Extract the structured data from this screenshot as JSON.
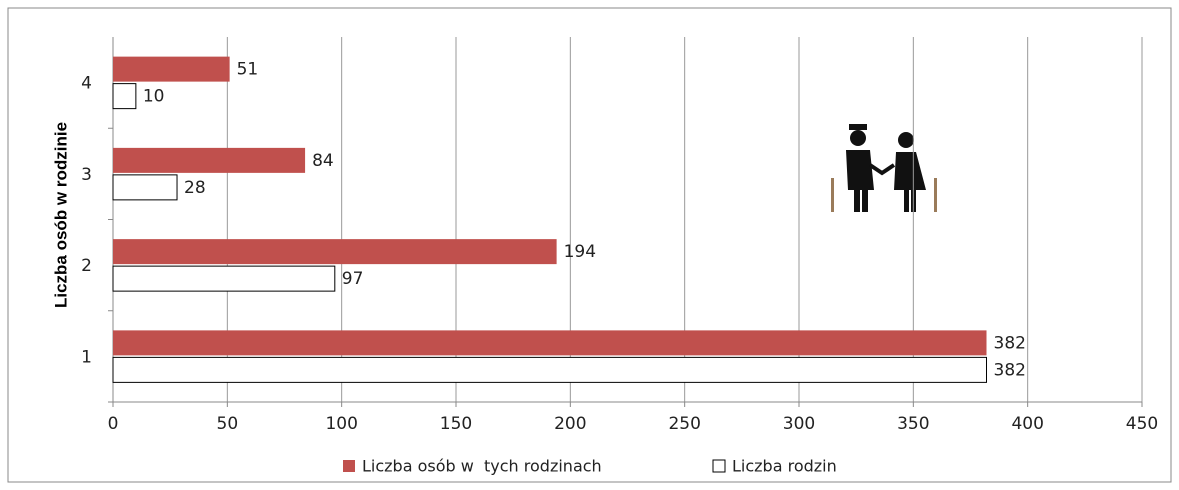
{
  "chart_data": {
    "type": "bar",
    "orientation": "horizontal",
    "ylabel": "Liczba osób w rodzinie",
    "categories": [
      "1",
      "2",
      "3",
      "4"
    ],
    "series": [
      {
        "name": "Liczba osób w  tych rodzinach",
        "color": "#c0504d",
        "values": [
          382,
          194,
          84,
          51
        ]
      },
      {
        "name": "Liczba rodzin",
        "color": "#ffffff",
        "values": [
          382,
          97,
          28,
          10
        ]
      }
    ],
    "xlim": [
      0,
      450
    ],
    "xticks": [
      0,
      50,
      100,
      150,
      200,
      250,
      300,
      350,
      400,
      450
    ],
    "grid": true,
    "legend": "bottom"
  }
}
